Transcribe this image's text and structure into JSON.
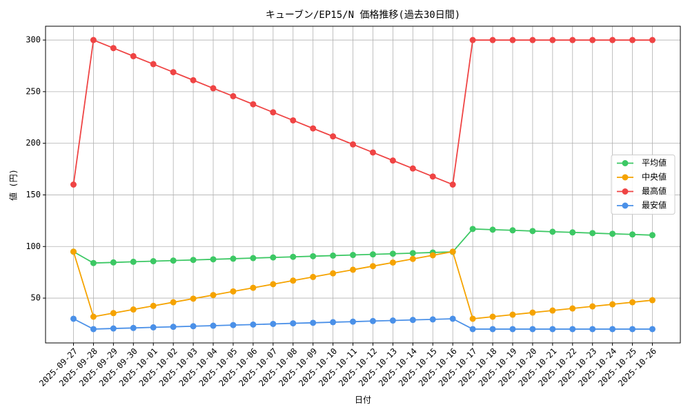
{
  "chart_data": {
    "type": "line",
    "title": "キューブン/EP15/N 価格推移(過去30日間)",
    "x_label": "日付",
    "y_label": "値 (円)",
    "categories": [
      "2025-09-27",
      "2025-09-28",
      "2025-09-29",
      "2025-09-30",
      "2025-10-01",
      "2025-10-02",
      "2025-10-03",
      "2025-10-04",
      "2025-10-05",
      "2025-10-06",
      "2025-10-07",
      "2025-10-08",
      "2025-10-09",
      "2025-10-10",
      "2025-10-11",
      "2025-10-12",
      "2025-10-13",
      "2025-10-14",
      "2025-10-15",
      "2025-10-16",
      "2025-10-17",
      "2025-10-18",
      "2025-10-19",
      "2025-10-20",
      "2025-10-21",
      "2025-10-22",
      "2025-10-23",
      "2025-10-24",
      "2025-10-25",
      "2025-10-26"
    ],
    "series": [
      {
        "name": "平均値",
        "color": "#3cc864",
        "values": [
          95,
          84,
          84.6,
          85.2,
          85.8,
          86.4,
          87,
          87.6,
          88.2,
          88.8,
          89.4,
          90,
          90.6,
          91.2,
          91.8,
          92.4,
          93,
          93.6,
          94.2,
          94.8,
          117,
          116.3,
          115.7,
          115,
          114.3,
          113.7,
          113,
          112.3,
          111.7,
          111
        ]
      },
      {
        "name": "中央値",
        "color": "#f5a300",
        "values": [
          95,
          32,
          35.5,
          39,
          42.5,
          46,
          49.5,
          53,
          56.5,
          60,
          63.5,
          67,
          70.5,
          74,
          77.5,
          81,
          84.5,
          88,
          91.5,
          95,
          30,
          32,
          34,
          36,
          38,
          40,
          42,
          44,
          46,
          48
        ]
      },
      {
        "name": "最高値",
        "color": "#ef4444",
        "values": [
          160,
          300,
          292.2,
          284.4,
          276.7,
          268.9,
          261.1,
          253.3,
          245.6,
          237.8,
          230,
          222.2,
          214.4,
          206.7,
          198.9,
          191.1,
          183.3,
          175.6,
          167.8,
          160,
          300,
          300,
          300,
          300,
          300,
          300,
          300,
          300,
          300,
          300
        ]
      },
      {
        "name": "最安値",
        "color": "#4a90e8",
        "values": [
          30,
          20,
          20.6,
          21.1,
          21.7,
          22.2,
          22.8,
          23.3,
          23.9,
          24.4,
          25,
          25.6,
          26.1,
          26.7,
          27.2,
          27.8,
          28.3,
          28.9,
          29.4,
          30,
          20,
          20,
          20,
          20,
          20,
          20,
          20,
          20,
          20,
          20
        ]
      }
    ],
    "ylim": [
      6.6,
      313.4
    ],
    "yticks": [
      50,
      100,
      150,
      200,
      250,
      300
    ],
    "grid": true,
    "legend": "center right"
  }
}
